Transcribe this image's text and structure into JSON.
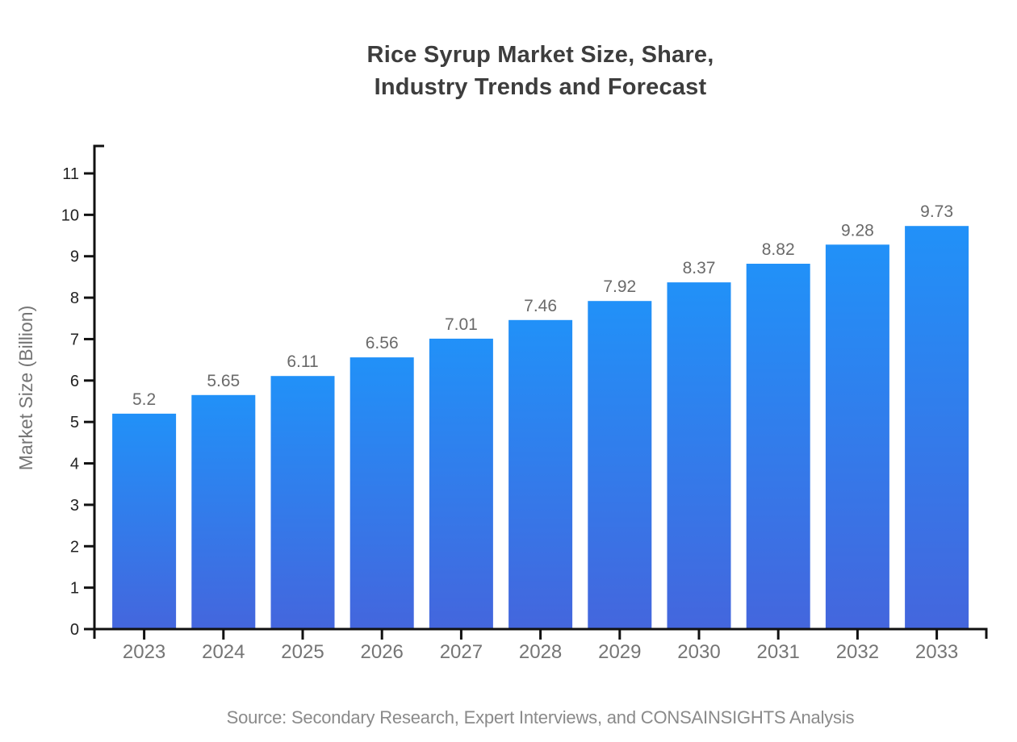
{
  "chart_data": {
    "type": "bar",
    "title_lines": [
      "Rice Syrup Market Size, Share,",
      "Industry Trends and Forecast"
    ],
    "categories": [
      "2023",
      "2024",
      "2025",
      "2026",
      "2027",
      "2028",
      "2029",
      "2030",
      "2031",
      "2032",
      "2033"
    ],
    "values": [
      5.2,
      5.65,
      6.11,
      6.56,
      7.01,
      7.46,
      7.92,
      8.37,
      8.82,
      9.28,
      9.73
    ],
    "value_labels": [
      "5.2",
      "5.65",
      "6.11",
      "6.56",
      "7.01",
      "7.46",
      "7.92",
      "8.37",
      "8.82",
      "9.28",
      "9.73"
    ],
    "xlabel": "",
    "ylabel": "Market Size (Billion)",
    "ylim": [
      0,
      11
    ],
    "yticks": [
      0,
      1,
      2,
      3,
      4,
      5,
      6,
      7,
      8,
      9,
      10,
      11
    ],
    "grid": false,
    "legend": "none",
    "source": "Source: Secondary Research, Expert Interviews, and CONSAINSIGHTS Analysis",
    "colors": {
      "bar_gradient_top": "#2191f8",
      "bar_gradient_bottom": "#4466dd",
      "axis": "#111111",
      "title_text": "#3d3d3d",
      "y_tick_text": "#222222",
      "category_text": "#757575",
      "value_label_text": "#6a6a6a",
      "axis_label_text": "#757575",
      "source_text": "#8a8a8a"
    }
  }
}
